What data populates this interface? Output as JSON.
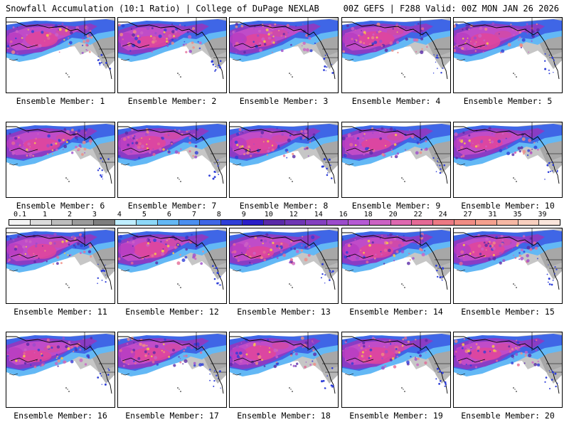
{
  "header": {
    "left": "Snowfall Accumulation (10:1 Ratio) | College of DuPage NEXLAB",
    "right": "00Z GEFS | F288 Valid: 00Z MON JAN 26 2026"
  },
  "panels": [
    {
      "label": "Ensemble Member: 1"
    },
    {
      "label": "Ensemble Member: 2"
    },
    {
      "label": "Ensemble Member: 3"
    },
    {
      "label": "Ensemble Member: 4"
    },
    {
      "label": "Ensemble Member: 5"
    },
    {
      "label": "Ensemble Member: 6"
    },
    {
      "label": "Ensemble Member: 7"
    },
    {
      "label": "Ensemble Member: 8"
    },
    {
      "label": "Ensemble Member: 9"
    },
    {
      "label": "Ensemble Member: 10"
    },
    {
      "label": "Ensemble Member: 11"
    },
    {
      "label": "Ensemble Member: 12"
    },
    {
      "label": "Ensemble Member: 13"
    },
    {
      "label": "Ensemble Member: 14"
    },
    {
      "label": "Ensemble Member: 15"
    },
    {
      "label": "Ensemble Member: 16"
    },
    {
      "label": "Ensemble Member: 17"
    },
    {
      "label": "Ensemble Member: 18"
    },
    {
      "label": "Ensemble Member: 19"
    },
    {
      "label": "Ensemble Member: 20"
    }
  ],
  "legend": {
    "labels": [
      "0.1",
      "1",
      "2",
      "3",
      "4",
      "5",
      "6",
      "7",
      "8",
      "9",
      "10",
      "12",
      "14",
      "16",
      "18",
      "20",
      "22",
      "24",
      "27",
      "31",
      "35",
      "39"
    ],
    "colors": [
      "#f4f4f4",
      "#dcdcdc",
      "#bdbdbd",
      "#9b9b9b",
      "#7e7e7e",
      "#bfeeff",
      "#8dd8f8",
      "#63b8f5",
      "#4b8ff0",
      "#3f66e6",
      "#2f3fd8",
      "#2a1ec8",
      "#5a2aa8",
      "#6f36b4",
      "#8440c0",
      "#9c4ccc",
      "#b65ad4",
      "#cc62c4",
      "#de68b0",
      "#e46a96",
      "#ec7a84",
      "#f08c84",
      "#f4a08e",
      "#f6b8a4",
      "#f8d0c0",
      "#fae6dc"
    ]
  }
}
